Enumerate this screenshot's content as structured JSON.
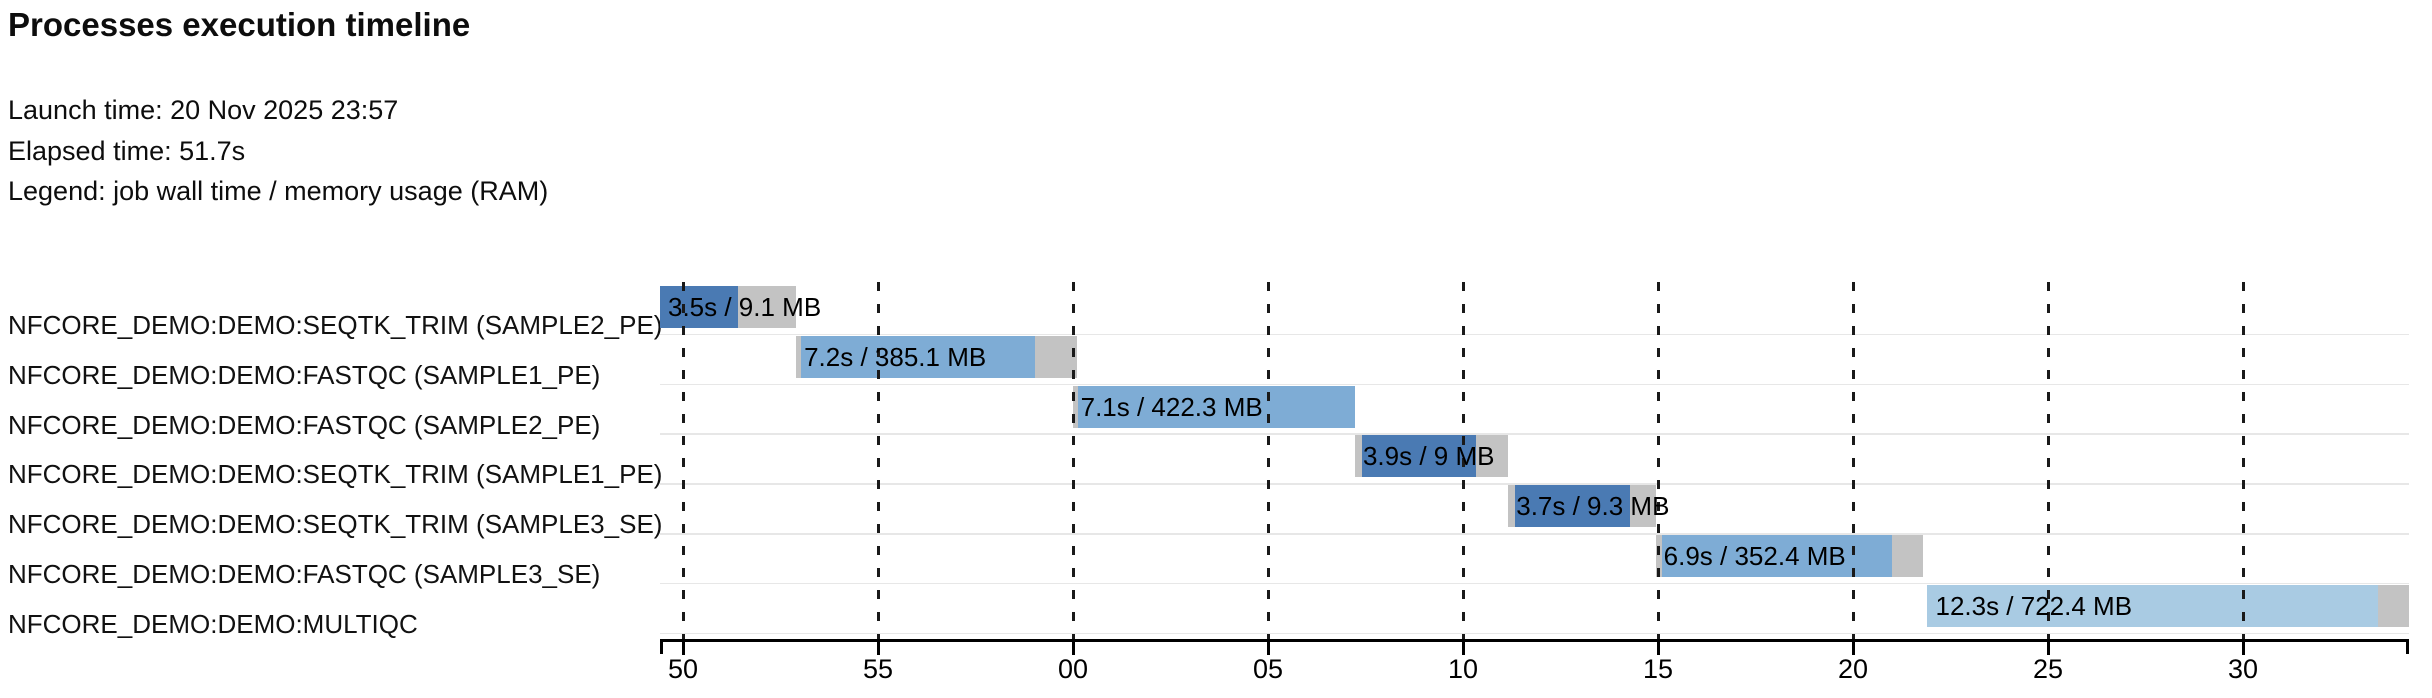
{
  "header": {
    "title": "Processes execution timeline",
    "launch_line": "Launch time: 20 Nov 2025 23:57",
    "elapsed_line": "Elapsed time: 51.7s",
    "legend_line": "Legend: job wall time / memory usage (RAM)"
  },
  "chart_data": {
    "type": "gantt",
    "title": "Processes execution timeline",
    "launch_time": "20 Nov 2025 23:57",
    "elapsed_time": "51.7s",
    "legend": "job wall time / memory usage (RAM)",
    "x_axis": {
      "unit": "seconds within minute (clock seconds after launch minute 23:57)",
      "tick_values": [
        50,
        55,
        60,
        65,
        70,
        75,
        80,
        85,
        90
      ],
      "tick_labels": [
        "50",
        "55",
        "00",
        "05",
        "10",
        "15",
        "20",
        "25",
        "30"
      ],
      "domain": [
        49.4,
        94.3
      ],
      "grid": "dashed-vertical"
    },
    "colors": {
      "seqtk_trim": "#4A7AB3",
      "fastqc": "#7EACD5",
      "multiqc": "#A9CBE3",
      "overhead_gray": "#C3C3C3",
      "grid": "#1a1a1a",
      "separator": "#e7e7e7",
      "text": "#000000"
    },
    "tasks": [
      {
        "name": "NFCORE_DEMO:DEMO:SEQTK_TRIM (SAMPLE2_PE)",
        "bar_label": "3.5s / 9.1 MB",
        "wall_time_s": 3.5,
        "memory": "9.1 MB",
        "start": 49.41,
        "run_start": 49.41,
        "run_end": 51.41,
        "end": 52.9,
        "shade": "seqtk_trim"
      },
      {
        "name": "NFCORE_DEMO:DEMO:FASTQC (SAMPLE1_PE)",
        "bar_label": "7.2s / 385.1 MB",
        "wall_time_s": 7.2,
        "memory": "385.1 MB",
        "start": 52.9,
        "run_start": 53.03,
        "run_end": 59.03,
        "end": 60.1,
        "shade": "fastqc"
      },
      {
        "name": "NFCORE_DEMO:DEMO:FASTQC (SAMPLE2_PE)",
        "bar_label": "7.1s / 422.3 MB",
        "wall_time_s": 7.1,
        "memory": "422.3 MB",
        "start": 59.99,
        "run_start": 60.13,
        "run_end": 67.23,
        "end": 67.23,
        "shade": "fastqc"
      },
      {
        "name": "NFCORE_DEMO:DEMO:SEQTK_TRIM (SAMPLE1_PE)",
        "bar_label": "3.9s / 9 MB",
        "wall_time_s": 3.9,
        "memory": "9 MB",
        "start": 67.23,
        "run_start": 67.41,
        "run_end": 70.33,
        "end": 71.15,
        "shade": "seqtk_trim"
      },
      {
        "name": "NFCORE_DEMO:DEMO:SEQTK_TRIM (SAMPLE3_SE)",
        "bar_label": "3.7s / 9.3 MB",
        "wall_time_s": 3.7,
        "memory": "9.3 MB",
        "start": 71.16,
        "run_start": 71.33,
        "run_end": 74.28,
        "end": 74.94,
        "shade": "seqtk_trim"
      },
      {
        "name": "NFCORE_DEMO:DEMO:FASTQC (SAMPLE3_SE)",
        "bar_label": "6.9s / 352.4 MB",
        "wall_time_s": 6.9,
        "memory": "352.4 MB",
        "start": 74.94,
        "run_start": 75.09,
        "run_end": 80.99,
        "end": 81.8,
        "shade": "fastqc"
      },
      {
        "name": "NFCORE_DEMO:DEMO:MULTIQC",
        "bar_label": "12.3s / 722.4 MB",
        "wall_time_s": 12.3,
        "memory": "722.4 MB",
        "start": 81.91,
        "run_start": 81.91,
        "run_end": 93.47,
        "end": 94.26,
        "shade": "multiqc"
      }
    ]
  }
}
